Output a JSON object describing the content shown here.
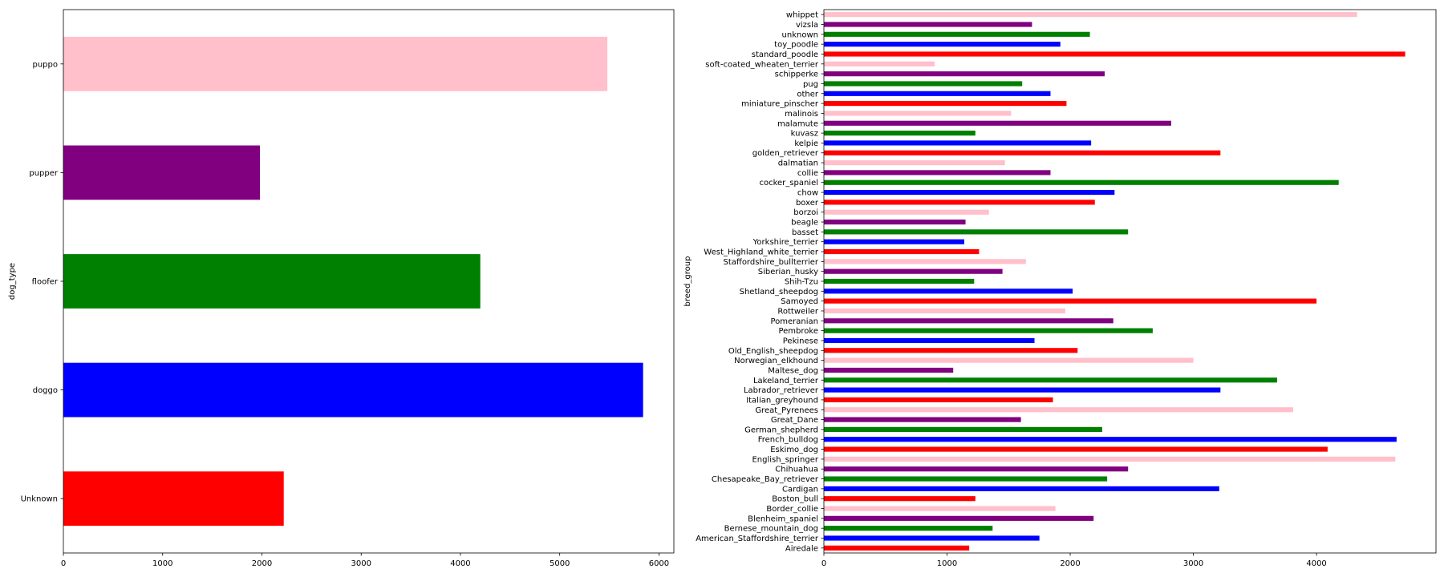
{
  "colors": [
    "#ff0000",
    "#0000ff",
    "#008000",
    "#800080",
    "#ffc0cb"
  ],
  "chart_data": [
    {
      "type": "bar",
      "orientation": "horizontal",
      "xlabel": "",
      "ylabel": "dog_type",
      "xlim": [
        0,
        6150
      ],
      "xticks": [
        0,
        1000,
        2000,
        3000,
        4000,
        5000,
        6000
      ],
      "categories": [
        "Unknown",
        "doggo",
        "floofer",
        "pupper",
        "puppo"
      ],
      "values": [
        2220,
        5840,
        4200,
        1980,
        5480
      ],
      "bar_colors": [
        "#ff0000",
        "#0000ff",
        "#008000",
        "#800080",
        "#ffc0cb"
      ],
      "grid": false
    },
    {
      "type": "bar",
      "orientation": "horizontal",
      "xlabel": "",
      "ylabel": "breed_group",
      "xlim": [
        0,
        4970
      ],
      "xticks": [
        0,
        1000,
        2000,
        3000,
        4000
      ],
      "categories": [
        "Airedale",
        "American_Staffordshire_terrier",
        "Bernese_mountain_dog",
        "Blenheim_spaniel",
        "Border_collie",
        "Boston_bull",
        "Cardigan",
        "Chesapeake_Bay_retriever",
        "Chihuahua",
        "English_springer",
        "Eskimo_dog",
        "French_bulldog",
        "German_shepherd",
        "Great_Dane",
        "Great_Pyrenees",
        "Italian_greyhound",
        "Labrador_retriever",
        "Lakeland_terrier",
        "Maltese_dog",
        "Norwegian_elkhound",
        "Old_English_sheepdog",
        "Pekinese",
        "Pembroke",
        "Pomeranian",
        "Rottweiler",
        "Samoyed",
        "Shetland_sheepdog",
        "Shih-Tzu",
        "Siberian_husky",
        "Staffordshire_bullterrier",
        "West_Highland_white_terrier",
        "Yorkshire_terrier",
        "basset",
        "beagle",
        "borzoi",
        "boxer",
        "chow",
        "cocker_spaniel",
        "collie",
        "dalmatian",
        "golden_retriever",
        "kelpie",
        "kuvasz",
        "malamute",
        "malinois",
        "miniature_pinscher",
        "other",
        "pug",
        "schipperke",
        "soft-coated_wheaten_terrier",
        "standard_poodle",
        "toy_poodle",
        "unknown",
        "vizsla",
        "whippet"
      ],
      "values": [
        1180,
        1750,
        1370,
        2190,
        1880,
        1230,
        3210,
        2300,
        2470,
        4640,
        4090,
        4650,
        2260,
        1600,
        3810,
        1860,
        3220,
        3680,
        1050,
        3000,
        2060,
        1710,
        2670,
        2350,
        1960,
        4000,
        2020,
        1220,
        1450,
        1640,
        1260,
        1140,
        2470,
        1150,
        1340,
        2200,
        2360,
        4180,
        1840,
        1470,
        3220,
        2170,
        1230,
        2820,
        1520,
        1970,
        1840,
        1610,
        2280,
        900,
        4720,
        1920,
        2160,
        1690,
        4330
      ],
      "bar_colors_cycle": [
        "#ff0000",
        "#0000ff",
        "#008000",
        "#800080",
        "#ffc0cb"
      ],
      "grid": false
    }
  ]
}
